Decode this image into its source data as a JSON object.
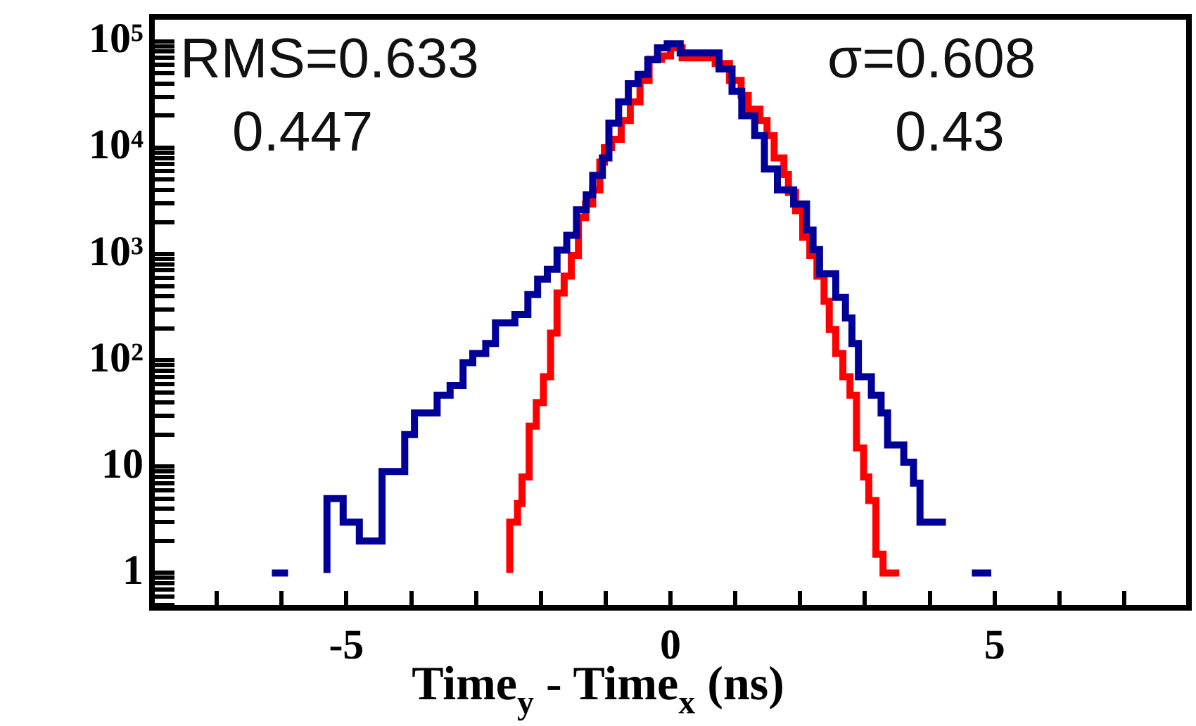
{
  "chart_data": {
    "type": "step",
    "xlabel": "Time$_{y}$ - Time$_{x}$ (ns)",
    "log": true,
    "xlim": [
      -8,
      8
    ],
    "ylim": [
      0.47,
      170000
    ],
    "xticks": [
      {
        "value": -7,
        "label": null
      },
      {
        "value": -6,
        "label": null
      },
      -5,
      {
        "value": -4,
        "label": null
      },
      {
        "value": -3,
        "label": null
      },
      {
        "value": -2,
        "label": null
      },
      {
        "value": -1,
        "label": null
      },
      0,
      {
        "value": 1,
        "label": null
      },
      {
        "value": 2,
        "label": null
      },
      {
        "value": 3,
        "label": null
      },
      {
        "value": 4,
        "label": null
      },
      5,
      {
        "value": 6,
        "label": null
      },
      {
        "value": 7,
        "label": null
      }
    ],
    "yticks": [
      {
        "value": 0.5,
        "label": null
      },
      {
        "value": 0.6,
        "label": null
      },
      {
        "value": 0.7,
        "label": null
      },
      {
        "value": 0.8,
        "label": null
      },
      {
        "value": 0.9,
        "label": null
      },
      1,
      {
        "value": 2,
        "label": null
      },
      {
        "value": 3,
        "label": null
      },
      {
        "value": 4,
        "label": null
      },
      {
        "value": 5,
        "label": null
      },
      {
        "value": 6,
        "label": null
      },
      {
        "value": 7,
        "label": null
      },
      {
        "value": 8,
        "label": null
      },
      {
        "value": 9,
        "label": null
      },
      10,
      {
        "value": 20,
        "label": null
      },
      {
        "value": 30,
        "label": null
      },
      {
        "value": 40,
        "label": null
      },
      {
        "value": 50,
        "label": null
      },
      {
        "value": 60,
        "label": null
      },
      {
        "value": 70,
        "label": null
      },
      {
        "value": 80,
        "label": null
      },
      {
        "value": 90,
        "label": null
      },
      {
        "value": 100,
        "label": "10²"
      },
      {
        "value": 200,
        "label": null
      },
      {
        "value": 300,
        "label": null
      },
      {
        "value": 400,
        "label": null
      },
      {
        "value": 500,
        "label": null
      },
      {
        "value": 600,
        "label": null
      },
      {
        "value": 700,
        "label": null
      },
      {
        "value": 800,
        "label": null
      },
      {
        "value": 900,
        "label": null
      },
      {
        "value": 1000,
        "label": "10³"
      },
      {
        "value": 2000,
        "label": null
      },
      {
        "value": 3000,
        "label": null
      },
      {
        "value": 4000,
        "label": null
      },
      {
        "value": 5000,
        "label": null
      },
      {
        "value": 6000,
        "label": null
      },
      {
        "value": 7000,
        "label": null
      },
      {
        "value": 8000,
        "label": null
      },
      {
        "value": 9000,
        "label": null
      },
      {
        "value": 10000,
        "label": "10⁴"
      },
      {
        "value": 20000,
        "label": null
      },
      {
        "value": 30000,
        "label": null
      },
      {
        "value": 40000,
        "label": null
      },
      {
        "value": 50000,
        "label": null
      },
      {
        "value": 60000,
        "label": null
      },
      {
        "value": 70000,
        "label": null
      },
      {
        "value": 80000,
        "label": null
      },
      {
        "value": 90000,
        "label": null
      },
      {
        "value": 100000,
        "label": "10⁵"
      }
    ],
    "annotations": [
      "RMS=0.633",
      "0.447",
      "σ=0.608",
      "0.43"
    ],
    "series": [
      {
        "color": "#000099",
        "x": [
          -6.15,
          -5.9,
          -5.6,
          -5.3,
          -5.05,
          -4.8,
          -4.45,
          -4.1,
          -3.95,
          -3.6,
          -3.4,
          -3.2,
          -3.05,
          -2.85,
          -2.7,
          -2.4,
          -2.2,
          -2.05,
          -1.9,
          -1.75,
          -1.6,
          -1.45,
          -1.3,
          -1.2,
          -1.05,
          -0.95,
          -0.8,
          -0.65,
          -0.5,
          -0.35,
          -0.2,
          -0.05,
          0.15,
          0.75,
          0.95,
          1.1,
          1.3,
          1.45,
          1.65,
          1.9,
          2.1,
          2.2,
          2.3,
          2.55,
          2.7,
          2.8,
          2.9,
          3.1,
          3.25,
          3.35,
          3.6,
          3.75,
          3.85,
          4.1,
          4.25,
          4.45,
          4.65,
          4.95
        ],
        "values": [
          1,
          1,
          null,
          1,
          5,
          3,
          2,
          9,
          20,
          32,
          47,
          58,
          95,
          116,
          144,
          225,
          270,
          415,
          580,
          720,
          1090,
          1500,
          2600,
          3600,
          5500,
          8000,
          17000,
          27000,
          40000,
          49000,
          67000,
          87000,
          95000,
          78000,
          55000,
          34000,
          20000,
          13000,
          6300,
          4000,
          2950,
          1680,
          1100,
          650,
          390,
          250,
          144,
          70,
          47,
          32,
          16,
          11,
          7,
          3,
          3,
          null,
          1,
          1
        ]
      },
      {
        "color": "#ff0000",
        "x": [
          -2.48,
          -2.36,
          -2.29,
          -2.18,
          -2.07,
          -1.96,
          -1.85,
          -1.75,
          -1.64,
          -1.53,
          -1.42,
          -1.31,
          -1.2,
          -1.09,
          -1.02,
          -0.91,
          -0.76,
          -0.62,
          -0.47,
          -0.33,
          -0.14,
          0.0,
          0.18,
          0.69,
          0.91,
          1.09,
          1.2,
          1.38,
          1.49,
          1.6,
          1.75,
          1.82,
          1.93,
          2.04,
          2.15,
          2.26,
          2.37,
          2.45,
          2.55,
          2.66,
          2.77,
          2.87,
          2.98,
          3.06,
          3.17,
          3.28,
          3.38,
          3.53
        ],
        "values": [
          1,
          3,
          4.5,
          8,
          24,
          40,
          70,
          180,
          430,
          620,
          970,
          2200,
          2950,
          4000,
          7300,
          10000,
          12000,
          18000,
          27000,
          43000,
          68000,
          73000,
          87000,
          70000,
          62000,
          43000,
          31000,
          23000,
          18000,
          13000,
          8000,
          5600,
          3800,
          2560,
          1440,
          970,
          620,
          360,
          195,
          116,
          70,
          47,
          15,
          8,
          4.8,
          1.5,
          1,
          1
        ]
      }
    ]
  }
}
